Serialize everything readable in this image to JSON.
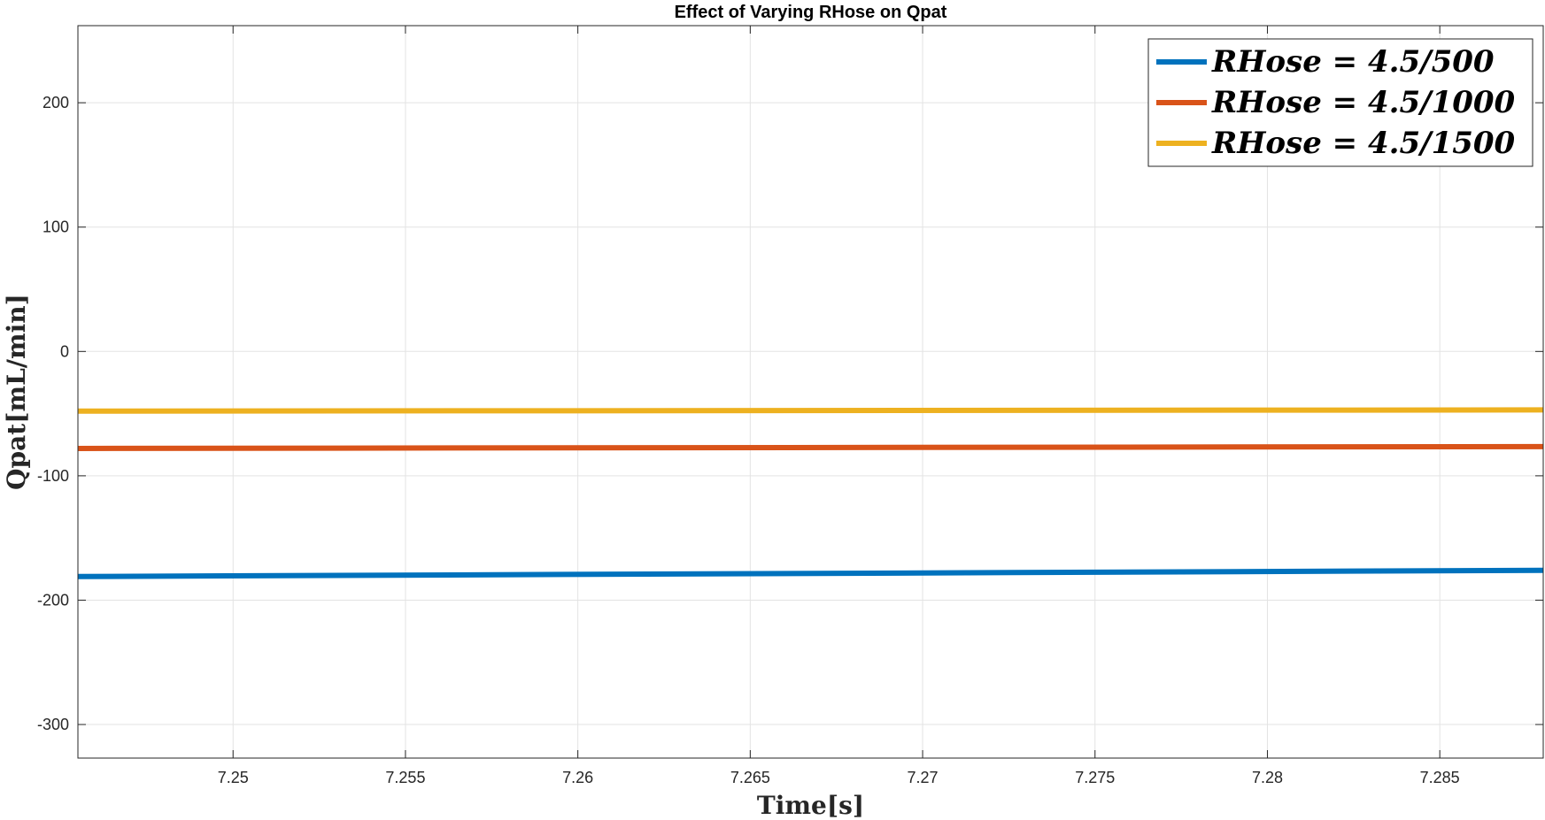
{
  "chart_data": {
    "type": "line",
    "title": "Effect of Varying RHose on Qpat",
    "xlabel": "Time[s]",
    "ylabel": "Qpat[mL/min]",
    "xlim": [
      7.2455,
      7.288
    ],
    "ylim": [
      -327,
      262
    ],
    "xticks": [
      7.25,
      7.255,
      7.26,
      7.265,
      7.27,
      7.275,
      7.28,
      7.285
    ],
    "xtick_labels": [
      "7.25",
      "7.255",
      "7.26",
      "7.265",
      "7.27",
      "7.275",
      "7.28",
      "7.285"
    ],
    "yticks": [
      -300,
      -200,
      -100,
      0,
      100,
      200
    ],
    "ytick_labels": [
      "-300",
      "-200",
      "-100",
      "0",
      "100",
      "200"
    ],
    "grid": true,
    "legend_position": "top-right",
    "series": [
      {
        "name": "RHose = 4.5/500",
        "color": "#0072BD",
        "x": [
          7.2455,
          7.288
        ],
        "y": [
          -181,
          -176
        ]
      },
      {
        "name": "RHose = 4.5/1000",
        "color": "#D95319",
        "x": [
          7.2455,
          7.288
        ],
        "y": [
          -78,
          -76.5
        ]
      },
      {
        "name": "RHose = 4.5/1500",
        "color": "#EDB120",
        "x": [
          7.2455,
          7.288
        ],
        "y": [
          -48,
          -47
        ]
      }
    ]
  }
}
